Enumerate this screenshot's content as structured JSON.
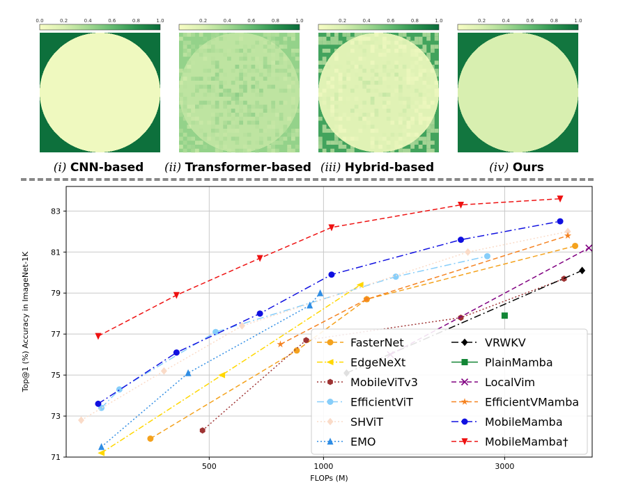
{
  "colorbar": {
    "ticks": [
      "0.0",
      "0.2",
      "0.4",
      "0.6",
      "0.8",
      "1.0"
    ],
    "colors": [
      "#f7fcc4",
      "#d8efb0",
      "#a4d992",
      "#65bb72",
      "#2b934f",
      "#0a6c3a"
    ]
  },
  "heatmap_panels": [
    {
      "roman": "(i)",
      "label": "CNN-based",
      "intensities": [
        0.05,
        0.07,
        0.1,
        0.15,
        0.3,
        0.55,
        0.8,
        0.98
      ]
    },
    {
      "roman": "(ii)",
      "label": "Transformer-based",
      "intensities": [
        0.3,
        0.32,
        0.34,
        0.36,
        0.38,
        0.4,
        0.42,
        0.45
      ]
    },
    {
      "roman": "(iii)",
      "label": "Hybrid-based",
      "intensities": [
        0.15,
        0.18,
        0.22,
        0.27,
        0.33,
        0.42,
        0.55,
        0.72
      ]
    },
    {
      "roman": "(iv)",
      "label": "Ours",
      "intensities": [
        0.2,
        0.26,
        0.33,
        0.42,
        0.54,
        0.68,
        0.82,
        0.95
      ]
    }
  ],
  "chart_data": {
    "type": "line",
    "xlabel": "FLOPs (M)",
    "ylabel": "Top@1 (%) Accuracy in ImageNet-1K",
    "xscale": "log",
    "xlim": [
      210,
      5100
    ],
    "ylim": [
      71,
      84.2
    ],
    "xticks": [
      500,
      1000,
      3000
    ],
    "yticks": [
      71,
      73,
      75,
      77,
      79,
      81,
      83
    ],
    "grid": true,
    "legend_position": "lower-right",
    "series": [
      {
        "name": "FasterNet",
        "color": "#f4a21d",
        "marker": "circle",
        "dash": "7,4",
        "points": [
          [
            350,
            71.9
          ],
          [
            850,
            76.2
          ],
          [
            1300,
            78.7
          ],
          [
            4600,
            81.3
          ]
        ]
      },
      {
        "name": "EdgeNeXt",
        "color": "#ffd700",
        "marker": "triangle-left",
        "dash": "8,3,2,3",
        "points": [
          [
            260,
            71.2
          ],
          [
            540,
            75.0
          ],
          [
            1250,
            79.4
          ]
        ]
      },
      {
        "name": "MobileViTv3",
        "color": "#9e3333",
        "marker": "hexagon",
        "dash": "2,3",
        "points": [
          [
            480,
            72.3
          ],
          [
            900,
            76.7
          ],
          [
            2300,
            77.8
          ],
          [
            4300,
            79.7
          ]
        ]
      },
      {
        "name": "EfficientViT",
        "color": "#87cefa",
        "marker": "circle",
        "dash": "10,4,2,4",
        "points": [
          [
            260,
            73.4
          ],
          [
            290,
            74.3
          ],
          [
            520,
            77.1
          ],
          [
            1550,
            79.8
          ],
          [
            2700,
            80.8
          ]
        ]
      },
      {
        "name": "SHViT",
        "color": "#fadbc8",
        "marker": "diamond",
        "dash": "2,3",
        "points": [
          [
            230,
            72.8
          ],
          [
            380,
            75.2
          ],
          [
            610,
            77.4
          ],
          [
            2400,
            81.0
          ],
          [
            4400,
            82.0
          ]
        ]
      },
      {
        "name": "EMO",
        "color": "#2f8de4",
        "marker": "triangle-up",
        "dash": "2,3",
        "points": [
          [
            260,
            71.5
          ],
          [
            440,
            75.1
          ],
          [
            920,
            78.4
          ],
          [
            980,
            79.0
          ]
        ]
      },
      {
        "name": "VRWKV",
        "color": "#000000",
        "marker": "diamond",
        "dash": "10,4,2,4",
        "points": [
          [
            1150,
            75.1
          ],
          [
            4800,
            80.1
          ]
        ]
      },
      {
        "name": "PlainMamba",
        "color": "#138636",
        "marker": "square",
        "dash": "",
        "points": [
          [
            3000,
            77.9
          ]
        ]
      },
      {
        "name": "LocalVim",
        "color": "#800080",
        "marker": "x",
        "dash": "7,4",
        "points": [
          [
            1500,
            76.0
          ],
          [
            5000,
            81.2
          ]
        ]
      },
      {
        "name": "EfficientVMamba",
        "color": "#f58220",
        "marker": "star",
        "dash": "7,4",
        "points": [
          [
            770,
            76.5
          ],
          [
            1300,
            78.7
          ],
          [
            4400,
            81.8
          ]
        ]
      },
      {
        "name": "MobileMamba",
        "color": "#1010e0",
        "marker": "circle",
        "dash": "10,4,2,4",
        "points": [
          [
            255,
            73.6
          ],
          [
            410,
            76.1
          ],
          [
            680,
            78.0
          ],
          [
            1050,
            79.9
          ],
          [
            2300,
            81.6
          ],
          [
            4200,
            82.5
          ]
        ]
      },
      {
        "name": "MobileMamba†",
        "color": "#ee1111",
        "marker": "triangle-down",
        "dash": "7,4",
        "points": [
          [
            255,
            76.9
          ],
          [
            410,
            78.9
          ],
          [
            680,
            80.7
          ],
          [
            1050,
            82.2
          ],
          [
            2300,
            83.3
          ],
          [
            4200,
            83.6
          ]
        ]
      }
    ]
  }
}
